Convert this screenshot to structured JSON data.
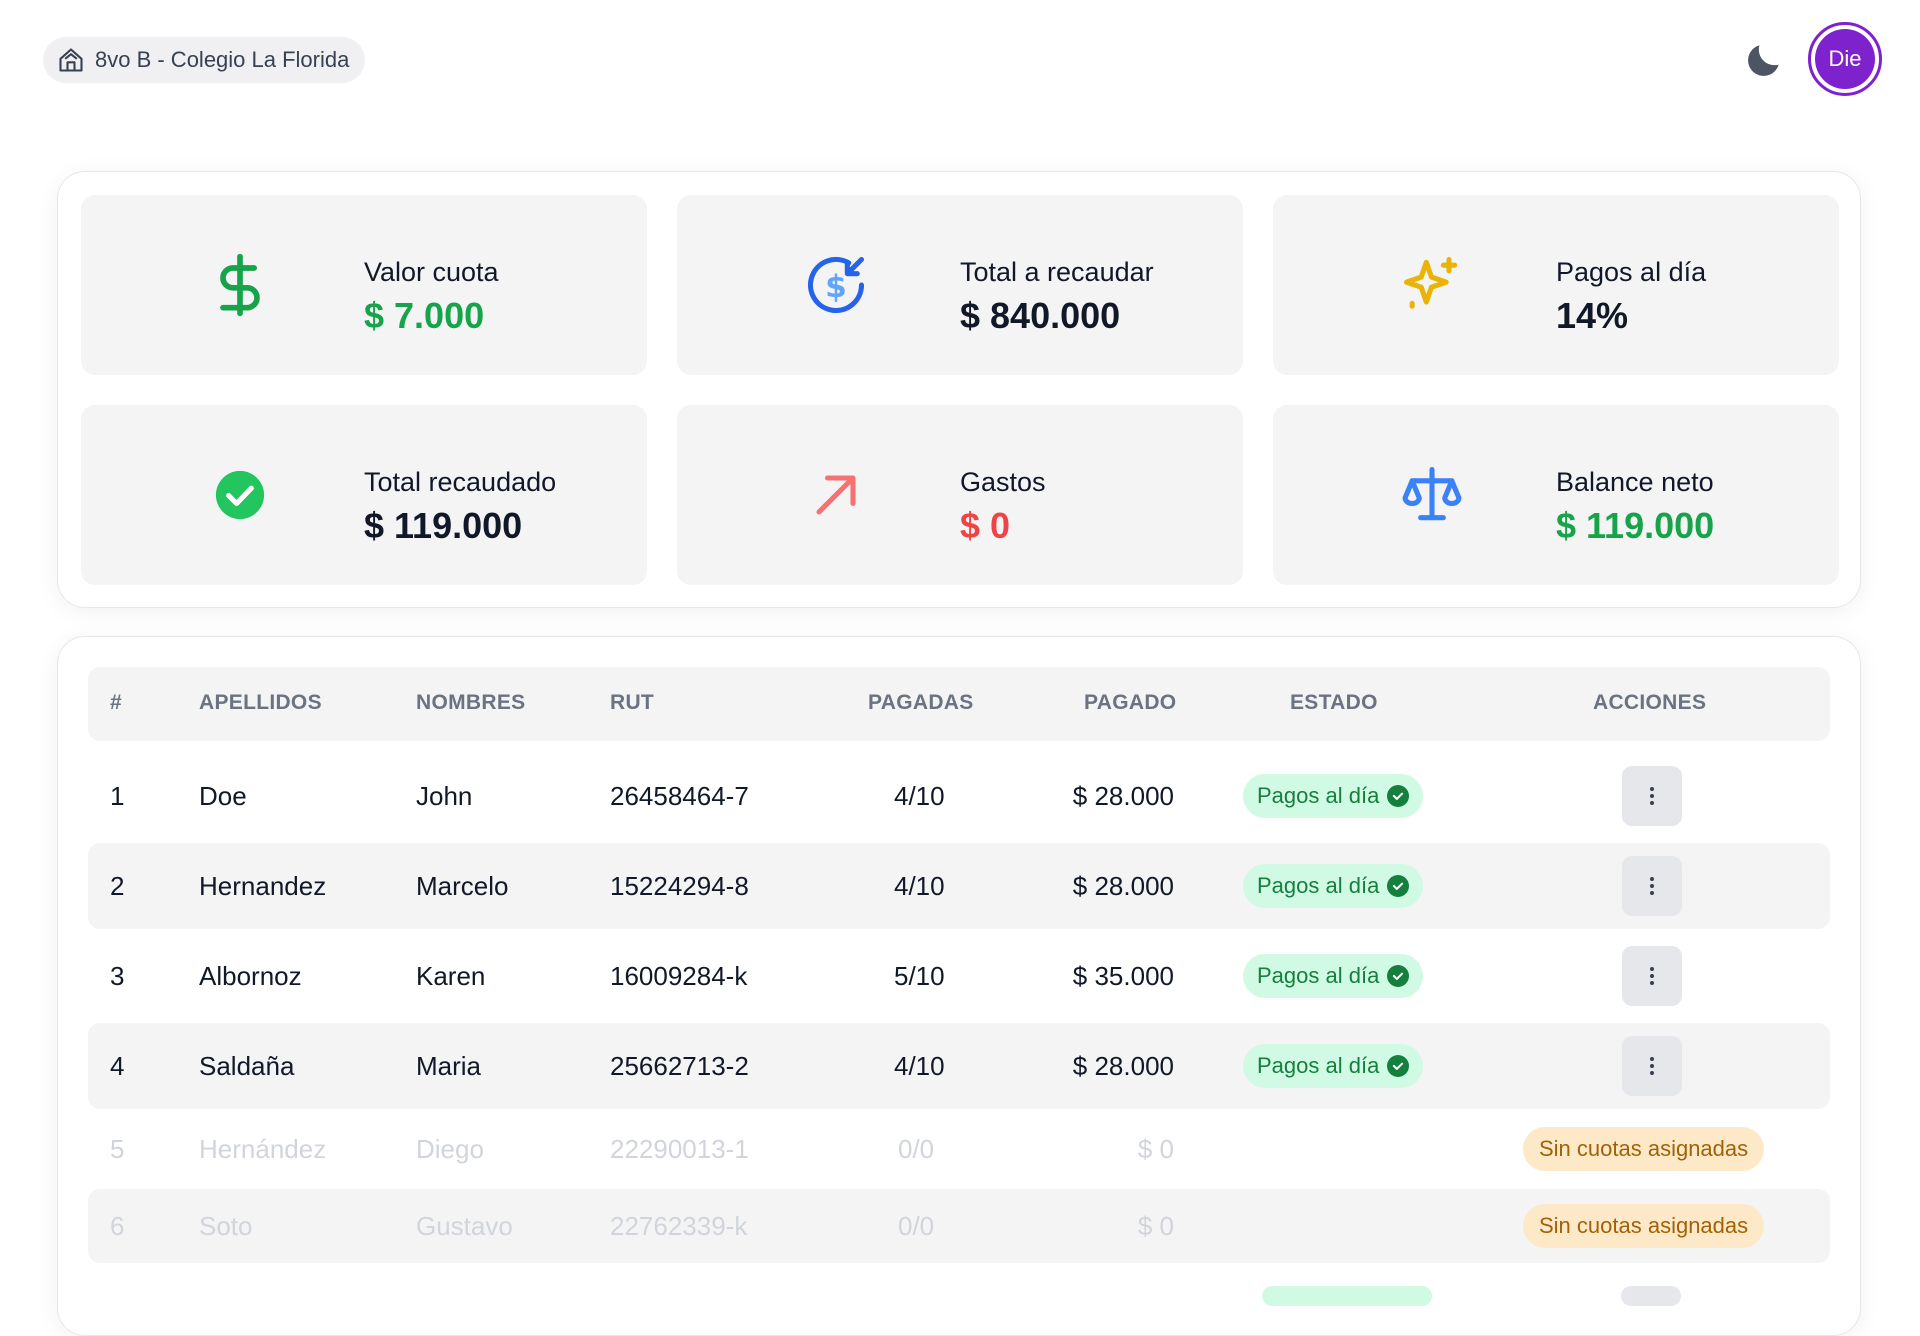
{
  "header": {
    "course": "8vo B - Colegio La Florida",
    "user_initials": "Die",
    "course_icon": "house-icon",
    "theme_icon": "moon-icon"
  },
  "stats": [
    {
      "label": "Valor cuota",
      "value": "$ 7.000",
      "icon": "dollar-icon",
      "color": "#16a34a"
    },
    {
      "label": "Total a recaudar",
      "value": "$ 840.000",
      "icon": "money-incoming-icon",
      "color": "#111827"
    },
    {
      "label": "Pagos al día",
      "value": "14%",
      "icon": "sparkle-icon",
      "color": "#111827"
    },
    {
      "label": "Total recaudado",
      "value": "$ 119.000",
      "icon": "check-circle-icon",
      "color": "#111827"
    },
    {
      "label": "Gastos",
      "value": "$ 0",
      "icon": "arrow-up-right-icon",
      "color": "#ef4444"
    },
    {
      "label": "Balance neto",
      "value": "$ 119.000",
      "icon": "scale-icon",
      "color": "#16a34a"
    }
  ],
  "table": {
    "columns": [
      "#",
      "APELLIDOS",
      "NOMBRES",
      "RUT",
      "PAGADAS",
      "PAGADO",
      "ESTADO",
      "ACCIONES"
    ],
    "rows": [
      {
        "num": "1",
        "apellidos": "Doe",
        "nombres": "John",
        "rut": "26458464-7",
        "pagadas": "4/10",
        "pagado": "$ 28.000",
        "estado": "Pagos al día"
      },
      {
        "num": "2",
        "apellidos": "Hernandez",
        "nombres": "Marcelo",
        "rut": "15224294-8",
        "pagadas": "4/10",
        "pagado": "$ 28.000",
        "estado": "Pagos al día"
      },
      {
        "num": "3",
        "apellidos": "Albornoz",
        "nombres": "Karen",
        "rut": "16009284-k",
        "pagadas": "5/10",
        "pagado": "$ 35.000",
        "estado": "Pagos al día"
      },
      {
        "num": "4",
        "apellidos": "Saldaña",
        "nombres": "Maria",
        "rut": "25662713-2",
        "pagadas": "4/10",
        "pagado": "$ 28.000",
        "estado": "Pagos al día"
      },
      {
        "num": "5",
        "apellidos": "Hernández",
        "nombres": "Diego",
        "rut": "22290013-1",
        "pagadas": "0/0",
        "pagado": "$ 0",
        "accion": "Sin cuotas asignadas"
      },
      {
        "num": "6",
        "apellidos": "Soto",
        "nombres": "Gustavo",
        "rut": "22762339-k",
        "pagadas": "0/0",
        "pagado": "$ 0",
        "accion": "Sin cuotas asignadas"
      }
    ]
  }
}
